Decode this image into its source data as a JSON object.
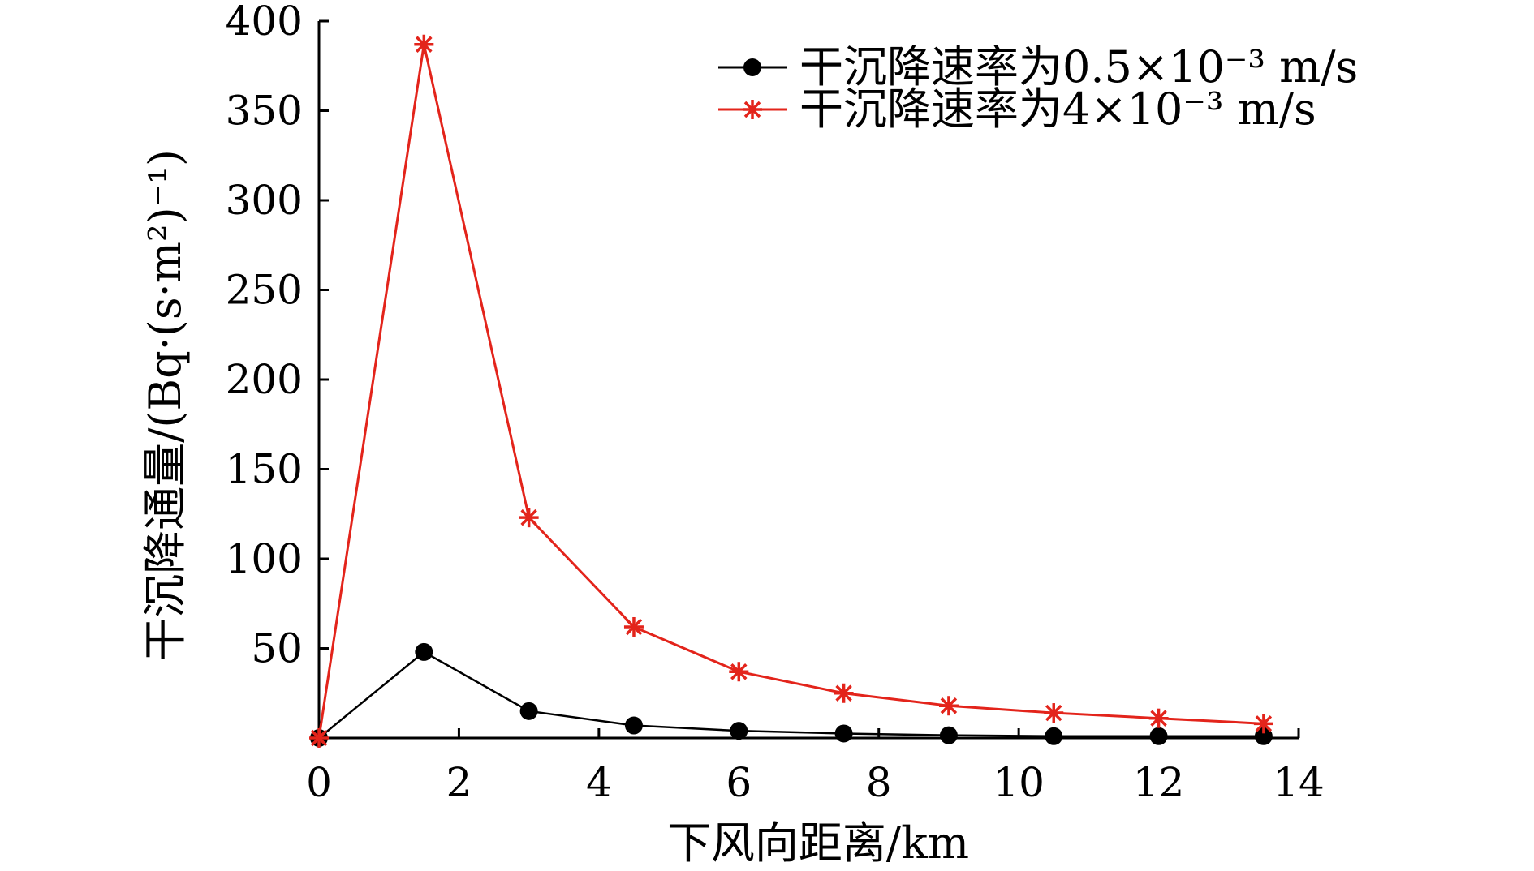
{
  "chart_data": {
    "type": "line",
    "title": "",
    "xlabel": "下风向距离/km",
    "ylabel": "干沉降通量/(Bq·(s·m²)⁻¹)",
    "xlim": [
      0,
      14
    ],
    "ylim": [
      0,
      400
    ],
    "xticks": [
      "0",
      "2",
      "4",
      "6",
      "8",
      "10",
      "12",
      "14"
    ],
    "yticks": [
      "50",
      "100",
      "150",
      "200",
      "250",
      "300",
      "350",
      "400"
    ],
    "grid": false,
    "legend_position": "top-right",
    "x": [
      0,
      1.5,
      3,
      4.5,
      6,
      7.5,
      9,
      10.5,
      12,
      13.5
    ],
    "series": [
      {
        "name": "干沉降速率为0.5×10⁻³ m/s",
        "color": "#000000",
        "marker": "circle",
        "values": [
          0,
          48,
          15,
          7,
          4,
          2.5,
          1.5,
          1,
          1,
          1
        ]
      },
      {
        "name": "干沉降速率为4×10⁻³ m/s",
        "color": "#e3241b",
        "marker": "asterisk",
        "values": [
          0,
          387,
          123,
          62,
          37,
          25,
          18,
          14,
          11,
          8
        ]
      }
    ]
  }
}
